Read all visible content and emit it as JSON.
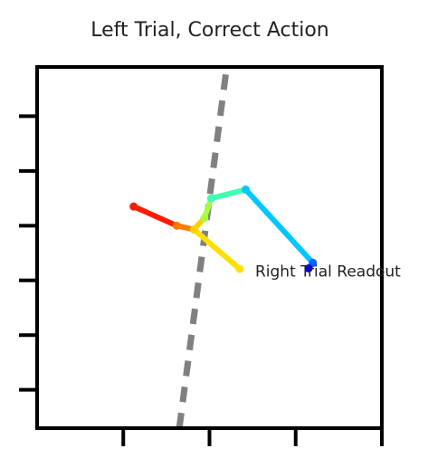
{
  "chart_data": {
    "type": "line",
    "title": "Left Trial, Correct Action",
    "xlabel": "",
    "ylabel": "",
    "xlim": [
      0,
      4
    ],
    "ylim": [
      -2.2,
      4.4
    ],
    "x_ticks": [
      1,
      2,
      3,
      4
    ],
    "y_ticks": [
      -1.5,
      -0.5,
      0.5,
      1.5,
      2.5,
      3.5
    ],
    "show_tick_labels": false,
    "grid": false,
    "series": [
      {
        "kind": "trajectory",
        "x": [
          1.12,
          1.62,
          1.82,
          1.94,
          2.02,
          2.42,
          3.2,
          3.15
        ],
        "y": [
          1.85,
          1.5,
          1.43,
          1.64,
          2.0,
          2.16,
          0.82,
          0.72
        ],
        "colors": [
          "#ff1a00",
          "#ff7a00",
          "#ffd000",
          "#a6ff40",
          "#40ffb0",
          "#00c8ff",
          "#0060ff",
          "#0000ff"
        ]
      },
      {
        "kind": "segment",
        "x": [
          1.82,
          2.35
        ],
        "y": [
          1.43,
          0.71
        ],
        "color": "#ffe000"
      },
      {
        "kind": "dashed-reference",
        "x": [
          1.65,
          2.2
        ],
        "y": [
          -2.2,
          4.4
        ],
        "color": "#808080"
      }
    ],
    "annotations": [
      {
        "text": "Right Trial Readout",
        "x": 2.53,
        "y": 0.57
      }
    ]
  }
}
